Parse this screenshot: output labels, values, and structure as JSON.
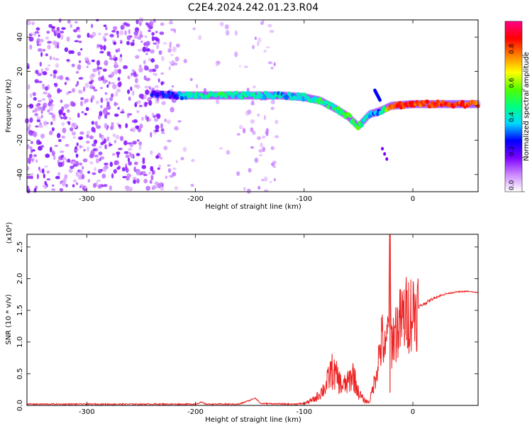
{
  "title": "C2E4.2024.242.01.23.R04",
  "chart_data": [
    {
      "type": "heatmap",
      "xlabel": "Height of straight line (km)",
      "ylabel": "Frequency (Hz)",
      "xlim": [
        -355,
        60
      ],
      "ylim": [
        -50,
        50
      ],
      "xticks": [
        "-300",
        "-200",
        "-100",
        "0"
      ],
      "yticks": [
        "-40",
        "-20",
        "0",
        "20",
        "40"
      ],
      "colorbar": {
        "label": "Normalized spectral amplitude",
        "range": [
          0,
          1
        ],
        "ticks": [
          "0.0",
          "0.2",
          "0.4",
          "0.6",
          "0.8"
        ],
        "colors": [
          "#ffffff",
          "#cc88ff",
          "#7a00ff",
          "#0000ff",
          "#00d8ff",
          "#00ff80",
          "#50ff00",
          "#ffff00",
          "#ff8000",
          "#ff0000",
          "#ff0088"
        ]
      },
      "ridge": [
        {
          "x": -240,
          "f": 7,
          "a": 0.25
        },
        {
          "x": -220,
          "f": 6,
          "a": 0.3
        },
        {
          "x": -200,
          "f": 6,
          "a": 0.45
        },
        {
          "x": -180,
          "f": 6,
          "a": 0.5
        },
        {
          "x": -160,
          "f": 6,
          "a": 0.45
        },
        {
          "x": -140,
          "f": 6,
          "a": 0.45
        },
        {
          "x": -120,
          "f": 6,
          "a": 0.4
        },
        {
          "x": -100,
          "f": 5,
          "a": 0.45
        },
        {
          "x": -85,
          "f": 3,
          "a": 0.5
        },
        {
          "x": -70,
          "f": -2,
          "a": 0.5
        },
        {
          "x": -60,
          "f": -6,
          "a": 0.55
        },
        {
          "x": -50,
          "f": -12,
          "a": 0.55
        },
        {
          "x": -40,
          "f": -5,
          "a": 0.35
        },
        {
          "x": -30,
          "f": -3,
          "a": 0.35
        },
        {
          "x": -20,
          "f": 0,
          "a": 0.85
        },
        {
          "x": 0,
          "f": 1,
          "a": 0.85
        },
        {
          "x": 30,
          "f": 1,
          "a": 0.85
        },
        {
          "x": 60,
          "f": 1,
          "a": 0.85
        }
      ],
      "streak": [
        {
          "x": -35,
          "f": 9
        },
        {
          "x": -30,
          "f": 3
        }
      ]
    },
    {
      "type": "line",
      "xlabel": "Height of straight line (km)",
      "ylabel": "SNR (10 * v/v)",
      "y_multiplier": "(x10⁴)",
      "xlim": [
        -355,
        60
      ],
      "ylim": [
        0,
        2.7
      ],
      "xticks": [
        "-300",
        "-200",
        "-100",
        "0"
      ],
      "yticks": [
        "0.0",
        "0.5",
        "1.0",
        "1.5",
        "2.0",
        "2.5"
      ],
      "series": [
        {
          "color": "#ee2222",
          "x": [
            -355,
            -300,
            -200,
            -195,
            -190,
            -160,
            -150,
            -145,
            -140,
            -110,
            -100,
            -90,
            -80,
            -75,
            -70,
            -65,
            -60,
            -55,
            -50,
            -45,
            -40,
            -35,
            -30,
            -28,
            -25,
            -23,
            -21,
            -20,
            -15,
            -10,
            -5,
            0,
            10,
            20,
            30,
            40,
            50,
            60
          ],
          "y": [
            0.02,
            0.02,
            0.02,
            0.05,
            0.02,
            0.02,
            0.08,
            0.12,
            0.03,
            0.02,
            0.03,
            0.1,
            0.3,
            0.55,
            0.45,
            0.3,
            0.35,
            0.5,
            0.2,
            0.08,
            0.05,
            0.4,
            0.9,
            1.05,
            0.8,
            1.2,
            2.6,
            1.0,
            1.2,
            1.35,
            1.45,
            1.5,
            1.6,
            1.7,
            1.76,
            1.79,
            1.8,
            1.78
          ]
        }
      ]
    }
  ]
}
